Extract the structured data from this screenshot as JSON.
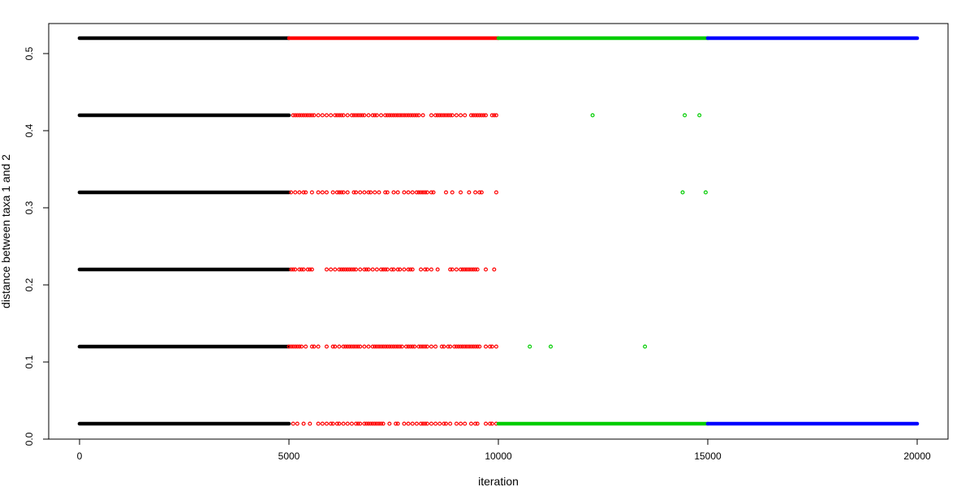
{
  "chart_data": {
    "type": "scatter",
    "title": "",
    "xlabel": "iteration",
    "ylabel": "distance between taxa 1 and 2",
    "xlim": [
      -800,
      20800
    ],
    "ylim": [
      0.0,
      0.52
    ],
    "x_ticks": [
      0,
      5000,
      10000,
      15000,
      20000
    ],
    "y_ticks": [
      0.0,
      0.1,
      0.2,
      0.3,
      0.4,
      0.5
    ],
    "x_tick_labels": [
      "0",
      "5000",
      "10000",
      "15000",
      "20000"
    ],
    "y_tick_labels": [
      "0.0",
      "0.1",
      "0.2",
      "0.3",
      "0.4",
      "0.5"
    ],
    "grid": false,
    "legend": "none",
    "levels": [
      0.02,
      0.12,
      0.22,
      0.32,
      0.42,
      0.52
    ],
    "series": [
      {
        "color": "#000000",
        "dense_ranges": [
          {
            "y": 0.52,
            "x": [
              0,
              5000
            ]
          },
          {
            "y": 0.42,
            "x": [
              0,
              5000
            ]
          },
          {
            "y": 0.32,
            "x": [
              0,
              5000
            ]
          },
          {
            "y": 0.22,
            "x": [
              0,
              5000
            ]
          },
          {
            "y": 0.12,
            "x": [
              0,
              5000
            ]
          },
          {
            "y": 0.02,
            "x": [
              0,
              5000
            ]
          }
        ],
        "points": []
      },
      {
        "color": "#ff0000",
        "dense_ranges": [
          {
            "y": 0.52,
            "x": [
              5000,
              10000
            ]
          }
        ],
        "points": [
          {
            "y": 0.42,
            "x": [
              5100,
              5150,
              5200,
              5250,
              5300,
              5350,
              5400,
              5450,
              5500,
              5550,
              5600,
              5700,
              5800,
              5900,
              6000,
              6100,
              6150,
              6200,
              6250,
              6300,
              6400,
              6500,
              6550,
              6600,
              6650,
              6700,
              6750,
              6800,
              6900,
              7000,
              7050,
              7100,
              7200,
              7300,
              7350,
              7400,
              7450,
              7500,
              7550,
              7600,
              7650,
              7700,
              7750,
              7800,
              7850,
              7900,
              7950,
              8000,
              8050,
              8100,
              8200,
              8400,
              8500,
              8550,
              8600,
              8650,
              8700,
              8750,
              8800,
              8850,
              8900,
              9000,
              9100,
              9200,
              9350,
              9400,
              9450,
              9500,
              9550,
              9600,
              9650,
              9700,
              9850,
              9900,
              9950
            ]
          },
          {
            "y": 0.32,
            "x": [
              5050,
              5150,
              5250,
              5350,
              5400,
              5550,
              5700,
              5800,
              5900,
              6050,
              6150,
              6200,
              6250,
              6300,
              6400,
              6550,
              6600,
              6700,
              6800,
              6900,
              6950,
              7050,
              7150,
              7300,
              7350,
              7500,
              7600,
              7750,
              7850,
              7950,
              8050,
              8100,
              8150,
              8200,
              8250,
              8300,
              8400,
              8450,
              8750,
              8900,
              9100,
              9300,
              9450,
              9550,
              9600,
              9950
            ]
          },
          {
            "y": 0.22,
            "x": [
              5050,
              5100,
              5150,
              5250,
              5300,
              5350,
              5450,
              5500,
              5550,
              5900,
              6000,
              6100,
              6200,
              6250,
              6300,
              6350,
              6400,
              6450,
              6500,
              6550,
              6600,
              6700,
              6800,
              6850,
              6900,
              7000,
              7100,
              7200,
              7250,
              7300,
              7350,
              7450,
              7500,
              7600,
              7650,
              7750,
              7850,
              7900,
              7950,
              8150,
              8250,
              8300,
              8400,
              8550,
              8850,
              8900,
              9000,
              9100,
              9150,
              9200,
              9250,
              9300,
              9350,
              9400,
              9450,
              9500,
              9700,
              9900
            ]
          },
          {
            "y": 0.12,
            "x": [
              5000,
              5050,
              5100,
              5150,
              5200,
              5250,
              5300,
              5400,
              5550,
              5600,
              5700,
              5900,
              6050,
              6100,
              6200,
              6300,
              6350,
              6400,
              6450,
              6500,
              6550,
              6600,
              6650,
              6700,
              6800,
              6900,
              7000,
              7050,
              7100,
              7150,
              7200,
              7250,
              7300,
              7350,
              7400,
              7450,
              7500,
              7550,
              7600,
              7650,
              7700,
              7800,
              7850,
              7900,
              7950,
              8000,
              8100,
              8150,
              8200,
              8250,
              8300,
              8400,
              8500,
              8650,
              8700,
              8800,
              8850,
              8950,
              9000,
              9050,
              9100,
              9150,
              9200,
              9250,
              9300,
              9350,
              9400,
              9450,
              9500,
              9550,
              9700,
              9800,
              9850,
              9950
            ]
          },
          {
            "y": 0.02,
            "x": [
              5100,
              5200,
              5350,
              5500,
              5700,
              5800,
              5900,
              6000,
              6050,
              6150,
              6200,
              6300,
              6400,
              6500,
              6600,
              6650,
              6700,
              6800,
              6850,
              6900,
              6950,
              7000,
              7050,
              7100,
              7150,
              7200,
              7250,
              7400,
              7550,
              7600,
              7750,
              7850,
              7950,
              8050,
              8150,
              8200,
              8250,
              8300,
              8400,
              8500,
              8600,
              8700,
              8750,
              8850,
              9000,
              9100,
              9200,
              9350,
              9450,
              9500,
              9700,
              9800,
              9850,
              9950
            ]
          }
        ]
      },
      {
        "color": "#00cd00",
        "dense_ranges": [
          {
            "y": 0.52,
            "x": [
              10000,
              15000
            ]
          },
          {
            "y": 0.02,
            "x": [
              10000,
              15000
            ]
          }
        ],
        "points": [
          {
            "y": 0.42,
            "x": [
              12250,
              14450,
              14800
            ]
          },
          {
            "y": 0.32,
            "x": [
              14400,
              14950
            ]
          },
          {
            "y": 0.12,
            "x": [
              10750,
              11250,
              13500
            ]
          }
        ]
      },
      {
        "color": "#0000ff",
        "dense_ranges": [
          {
            "y": 0.52,
            "x": [
              15000,
              20000
            ]
          },
          {
            "y": 0.02,
            "x": [
              15000,
              20000
            ]
          }
        ],
        "points": []
      }
    ]
  }
}
